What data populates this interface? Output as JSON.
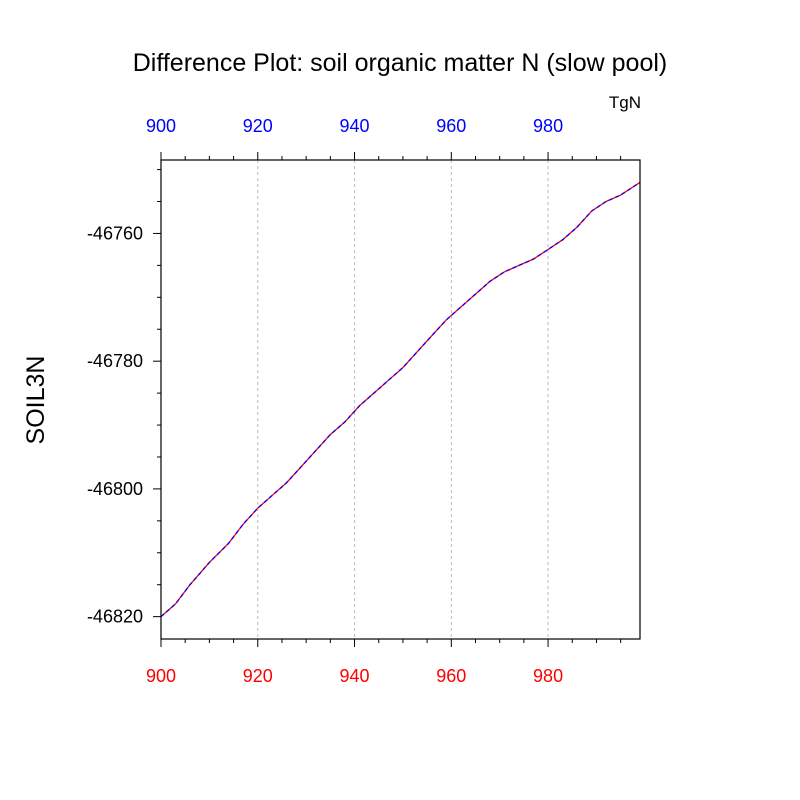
{
  "chart_data": {
    "type": "line",
    "title": "Difference Plot: soil organic matter N (slow pool)",
    "ylabel": "SOIL3N",
    "units": "TgN",
    "xlim": [
      900,
      999
    ],
    "ylim": [
      -46823.5,
      -46748.5
    ],
    "xticks_bottom": [
      900,
      920,
      940,
      960,
      980
    ],
    "xticks_top": [
      900,
      920,
      940,
      960,
      980
    ],
    "yticks": [
      -46760,
      -46780,
      -46800,
      -46820
    ],
    "grid": "vertical dashed at major x ticks",
    "colors": {
      "bottom_axis_labels": "#ff0000",
      "top_axis_labels": "#0000ff",
      "series_red": "#ff0000",
      "series_blue": "#0000ff"
    },
    "series": [
      {
        "color": "#ff0000",
        "dash": "solid",
        "x": [
          900,
          903,
          906,
          910,
          914,
          917,
          920,
          923,
          926,
          929,
          932,
          935,
          938,
          941,
          944,
          947,
          950,
          953,
          956,
          959,
          962,
          965,
          968,
          971,
          974,
          977,
          980,
          983,
          986,
          989,
          992,
          995,
          999
        ],
        "y": [
          -46820,
          -46818,
          -46815,
          -46811.5,
          -46808.5,
          -46805.5,
          -46803,
          -46801,
          -46799,
          -46796.5,
          -46794,
          -46791.5,
          -46789.5,
          -46787,
          -46785,
          -46783,
          -46781,
          -46778.5,
          -46776,
          -46773.5,
          -46771.5,
          -46769.5,
          -46767.5,
          -46766,
          -46765,
          -46764,
          -46762.5,
          -46761,
          -46759,
          -46756.5,
          -46755,
          -46754,
          -46752
        ]
      },
      {
        "color": "#0000ff",
        "dash": "dashed",
        "x": [
          900,
          903,
          906,
          910,
          914,
          917,
          920,
          923,
          926,
          929,
          932,
          935,
          938,
          941,
          944,
          947,
          950,
          953,
          956,
          959,
          962,
          965,
          968,
          971,
          974,
          977,
          980,
          983,
          986,
          989,
          992,
          995,
          999
        ],
        "y": [
          -46820,
          -46818,
          -46815,
          -46811.5,
          -46808.5,
          -46805.5,
          -46803,
          -46801,
          -46799,
          -46796.5,
          -46794,
          -46791.5,
          -46789.5,
          -46787,
          -46785,
          -46783,
          -46781,
          -46778.5,
          -46776,
          -46773.5,
          -46771.5,
          -46769.5,
          -46767.5,
          -46766,
          -46765,
          -46764,
          -46762.5,
          -46761,
          -46759,
          -46756.5,
          -46755,
          -46754,
          -46752
        ]
      }
    ]
  }
}
